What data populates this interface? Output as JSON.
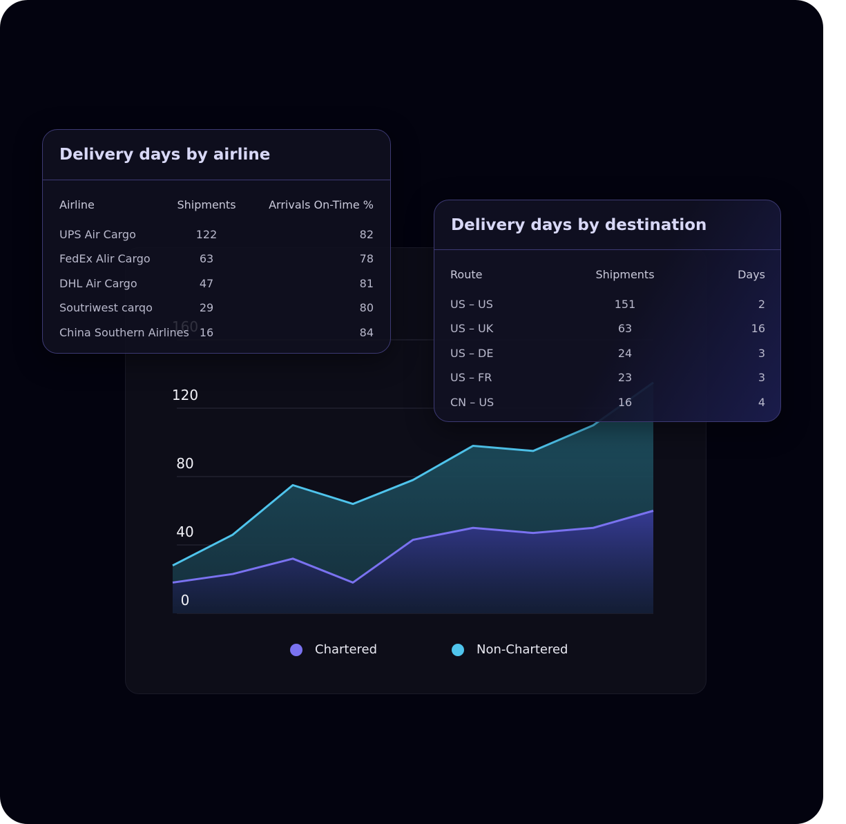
{
  "airline_table": {
    "title": "Delivery days by airline",
    "headers": [
      "Airline",
      "Shipments",
      "Arrivals On-Time %"
    ],
    "rows": [
      [
        "UPS Air Cargo",
        "122",
        "82"
      ],
      [
        "FedEx Alir Cargo",
        "63",
        "78"
      ],
      [
        "DHL Air Cargo",
        "47",
        "81"
      ],
      [
        "Soutriwest carqo",
        "29",
        "80"
      ],
      [
        "China Southern Airlines",
        "16",
        "84"
      ]
    ]
  },
  "destination_table": {
    "title": "Delivery days by destination",
    "headers": [
      "Route",
      "Shipments",
      "Days"
    ],
    "rows": [
      [
        "US – US",
        "151",
        "2"
      ],
      [
        "US – UK",
        "63",
        "16"
      ],
      [
        "US – DE",
        "24",
        "3"
      ],
      [
        "US – FR",
        "23",
        "3"
      ],
      [
        "CN – US",
        "16",
        "4"
      ]
    ]
  },
  "chart_data": {
    "type": "area",
    "x": [
      0,
      1,
      2,
      3,
      4,
      5,
      6,
      7,
      8
    ],
    "series": [
      {
        "name": "Chartered",
        "values": [
          18,
          23,
          32,
          18,
          43,
          50,
          47,
          50,
          60
        ],
        "color": "#7a72f0"
      },
      {
        "name": "Non-Chartered",
        "values": [
          28,
          46,
          75,
          64,
          78,
          98,
          95,
          110,
          135
        ],
        "color": "#4fc4ec"
      }
    ],
    "yticks": [
      0,
      40,
      80,
      120,
      160
    ],
    "ylim": [
      0,
      160
    ],
    "grid": true,
    "legend": "bottom"
  }
}
